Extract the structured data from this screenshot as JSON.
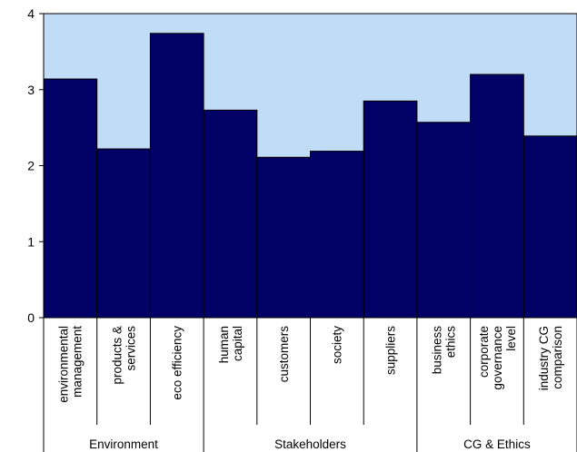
{
  "chart_data": {
    "type": "bar",
    "title": "",
    "xlabel": "",
    "ylabel": "",
    "ylim": [
      0,
      4
    ],
    "yticks": [
      "0",
      "1",
      "2",
      "3",
      "4"
    ],
    "grid": false,
    "legend": "none",
    "categories": [
      [
        "environmental",
        "management"
      ],
      [
        "products &",
        "services"
      ],
      [
        "eco efficiency"
      ],
      [
        "human",
        "capital"
      ],
      [
        "customers"
      ],
      [
        "society"
      ],
      [
        "suppliers"
      ],
      [
        "business",
        "ethics"
      ],
      [
        "corporate",
        "governance",
        "level"
      ],
      [
        "industry CG",
        "comparison"
      ]
    ],
    "values": [
      3.14,
      2.22,
      3.74,
      2.73,
      2.11,
      2.19,
      2.85,
      2.57,
      3.2,
      2.39
    ],
    "groups": [
      {
        "label": "Environment",
        "count": 3
      },
      {
        "label": "Stakeholders",
        "count": 4
      },
      {
        "label": "CG & Ethics",
        "count": 3
      }
    ],
    "colors": {
      "bar": "#000066",
      "plot_area": "#c0dcf7",
      "axis": "#000000"
    }
  }
}
